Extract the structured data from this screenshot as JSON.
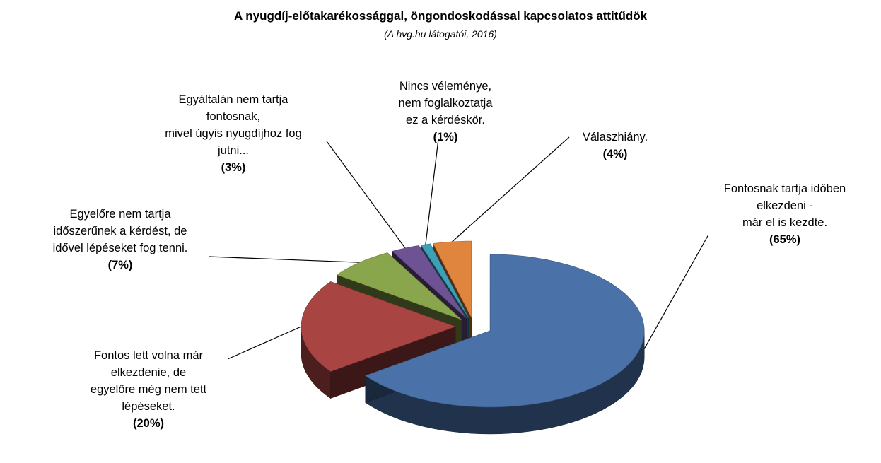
{
  "chart_data": {
    "type": "pie",
    "title": "A nyugdíj-előtakarékossággal, öngondoskodással kapcsolatos  attitűdök",
    "subtitle": "(A hvg.hu látogatói, 2016)",
    "legend": "none",
    "slices": [
      {
        "label": "Fontosnak tartja időben\nelkezdeni  -\nmár el is kezdte.",
        "value": 65,
        "value_label": "(65%)",
        "color": "#4a72a8"
      },
      {
        "label": "Fontos lett volna már\nelkezdenie, de\negyelőre még nem tett\nlépéseket.",
        "value": 20,
        "value_label": "(20%)",
        "color": "#a84542"
      },
      {
        "label": "Egyelőre nem tartja\nidőszerűnek a kérdést, de\nidővel lépéseket fog tenni.",
        "value": 7,
        "value_label": "(7%)",
        "color": "#8aa64c"
      },
      {
        "label": "Egyáltalán nem tartja\nfontosnak,\nmivel úgyis nyugdíjhoz fog\njutni...",
        "value": 3,
        "value_label": "(3%)",
        "color": "#6e5394"
      },
      {
        "label": "Nincs véleménye,\nnem foglalkoztatja\nez a kérdéskör.",
        "value": 1,
        "value_label": "(1%)",
        "color": "#3e9fb8"
      },
      {
        "label": "Válaszhiány.",
        "value": 4,
        "value_label": "(4%)",
        "color": "#e0853d"
      }
    ]
  }
}
